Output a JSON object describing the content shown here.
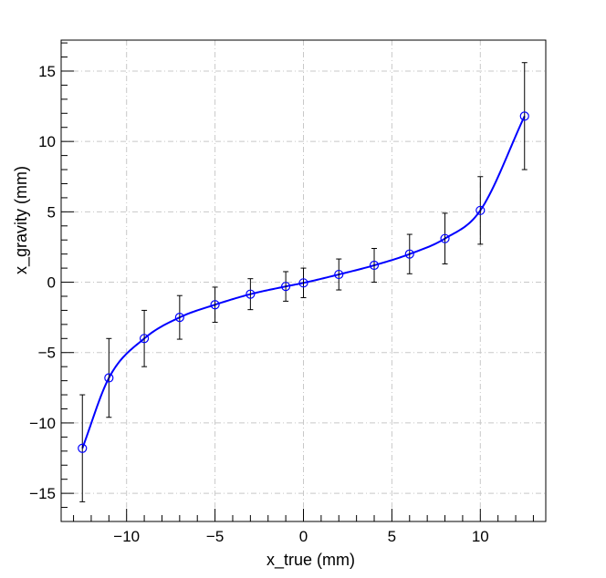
{
  "chart_data": {
    "type": "scatter",
    "xlabel": "x_true (mm)",
    "ylabel": "x_gravity (mm)",
    "xlim": [
      -13.7,
      13.7
    ],
    "ylim": [
      -17,
      17.2
    ],
    "x_ticks": [
      -10,
      -5,
      0,
      5,
      10
    ],
    "x_tick_labels": [
      "−10",
      "−5",
      "0",
      "5",
      "10"
    ],
    "y_ticks": [
      -15,
      -10,
      -5,
      0,
      5,
      10,
      15
    ],
    "y_tick_labels": [
      "−15",
      "−10",
      "−5",
      "0",
      "5",
      "10",
      "15"
    ],
    "grid": true,
    "series": [
      {
        "x": [
          -12.5,
          -11,
          -9,
          -7,
          -5,
          -3,
          -1,
          0,
          2,
          4,
          6,
          8,
          10,
          12.5
        ],
        "y": [
          -11.8,
          -6.8,
          -4.0,
          -2.5,
          -1.6,
          -0.85,
          -0.3,
          -0.05,
          0.55,
          1.2,
          2.0,
          3.1,
          5.1,
          11.8
        ],
        "yerr": [
          3.8,
          2.8,
          2.0,
          1.55,
          1.25,
          1.1,
          1.05,
          1.05,
          1.1,
          1.2,
          1.4,
          1.8,
          2.4,
          3.8
        ],
        "color": "#0000ff"
      }
    ],
    "fit_color": "#0000ff",
    "errorbar_color": "#000000"
  }
}
